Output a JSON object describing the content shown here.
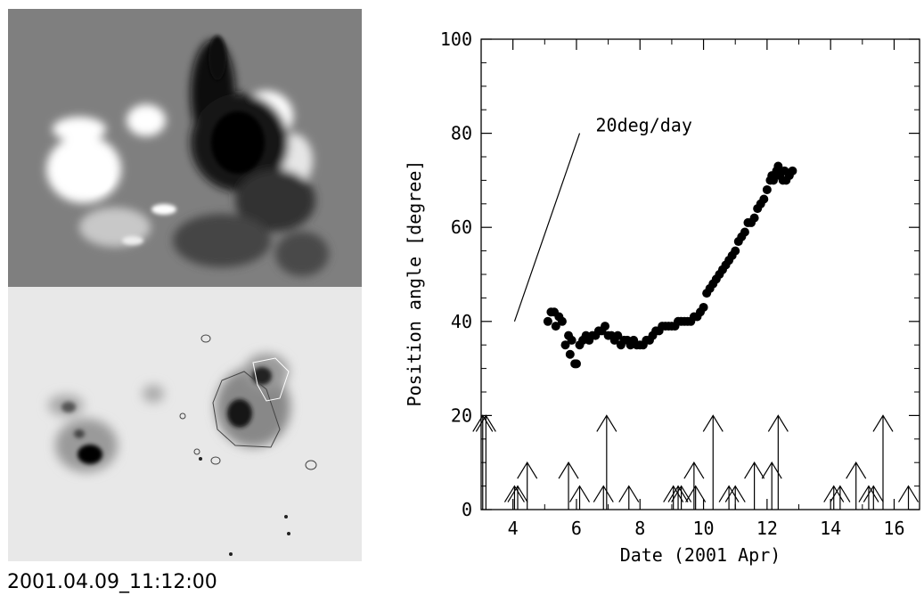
{
  "image_caption": "2001.04.09_11:12:00",
  "panels": {
    "magnetogram": {
      "icon": "magnetogram-image"
    },
    "continuum": {
      "icon": "white-light-sunspot-image"
    }
  },
  "colors": {
    "ink": "#000000",
    "magnetogram_bg": "#7f7f7f",
    "continuum_bg": "#e8e8e8"
  },
  "chart_data": {
    "type": "scatter",
    "xlabel": "Date (2001 Apr)",
    "ylabel": "Position angle [degree]",
    "xlim": [
      3,
      16.8
    ],
    "ylim": [
      0,
      100
    ],
    "xticks": [
      "4",
      "6",
      "8",
      "10",
      "12",
      "14",
      "16"
    ],
    "yticks": [
      "0",
      "20",
      "40",
      "60",
      "80",
      "100"
    ],
    "grid": false,
    "annotation": {
      "text": "20deg/day",
      "line": [
        [
          4.05,
          40
        ],
        [
          6.1,
          80
        ]
      ]
    },
    "points": [
      [
        5.1,
        40
      ],
      [
        5.2,
        42
      ],
      [
        5.3,
        42
      ],
      [
        5.35,
        39
      ],
      [
        5.45,
        41
      ],
      [
        5.55,
        40
      ],
      [
        5.65,
        35
      ],
      [
        5.75,
        37
      ],
      [
        5.8,
        33
      ],
      [
        5.85,
        36
      ],
      [
        5.95,
        31
      ],
      [
        6.0,
        31
      ],
      [
        6.1,
        35
      ],
      [
        6.2,
        36
      ],
      [
        6.3,
        37
      ],
      [
        6.4,
        36
      ],
      [
        6.5,
        37
      ],
      [
        6.6,
        37
      ],
      [
        6.7,
        38
      ],
      [
        6.8,
        38
      ],
      [
        6.9,
        39
      ],
      [
        7.0,
        37
      ],
      [
        7.1,
        37
      ],
      [
        7.2,
        36
      ],
      [
        7.3,
        37
      ],
      [
        7.4,
        35
      ],
      [
        7.5,
        36
      ],
      [
        7.6,
        36
      ],
      [
        7.7,
        35
      ],
      [
        7.8,
        36
      ],
      [
        7.9,
        35
      ],
      [
        8.0,
        35
      ],
      [
        8.1,
        35
      ],
      [
        8.2,
        36
      ],
      [
        8.3,
        36
      ],
      [
        8.4,
        37
      ],
      [
        8.5,
        38
      ],
      [
        8.6,
        38
      ],
      [
        8.7,
        39
      ],
      [
        8.8,
        39
      ],
      [
        8.9,
        39
      ],
      [
        9.0,
        39
      ],
      [
        9.1,
        39
      ],
      [
        9.2,
        40
      ],
      [
        9.3,
        40
      ],
      [
        9.4,
        40
      ],
      [
        9.5,
        40
      ],
      [
        9.6,
        40
      ],
      [
        9.7,
        41
      ],
      [
        9.8,
        41
      ],
      [
        9.9,
        42
      ],
      [
        10.0,
        43
      ],
      [
        10.1,
        46
      ],
      [
        10.2,
        47
      ],
      [
        10.3,
        48
      ],
      [
        10.4,
        49
      ],
      [
        10.5,
        50
      ],
      [
        10.6,
        51
      ],
      [
        10.7,
        52
      ],
      [
        10.8,
        53
      ],
      [
        10.9,
        54
      ],
      [
        11.0,
        55
      ],
      [
        11.1,
        57
      ],
      [
        11.2,
        58
      ],
      [
        11.3,
        59
      ],
      [
        11.4,
        61
      ],
      [
        11.5,
        61
      ],
      [
        11.6,
        62
      ],
      [
        11.7,
        64
      ],
      [
        11.8,
        65
      ],
      [
        11.9,
        66
      ],
      [
        12.0,
        68
      ],
      [
        12.1,
        70
      ],
      [
        12.15,
        71
      ],
      [
        12.2,
        70
      ],
      [
        12.3,
        72
      ],
      [
        12.35,
        73
      ],
      [
        12.4,
        71
      ],
      [
        12.5,
        70
      ],
      [
        12.55,
        72
      ],
      [
        12.6,
        70
      ],
      [
        12.7,
        71
      ],
      [
        12.8,
        72
      ]
    ],
    "flare_arrows": [
      [
        3.05,
        20
      ],
      [
        3.15,
        20
      ],
      [
        4.05,
        5
      ],
      [
        4.15,
        5
      ],
      [
        4.45,
        10
      ],
      [
        5.75,
        10
      ],
      [
        6.1,
        5
      ],
      [
        6.85,
        5
      ],
      [
        6.95,
        20
      ],
      [
        7.65,
        5
      ],
      [
        9.05,
        5
      ],
      [
        9.2,
        5
      ],
      [
        9.3,
        5
      ],
      [
        9.7,
        10
      ],
      [
        9.75,
        5
      ],
      [
        10.3,
        20
      ],
      [
        10.8,
        5
      ],
      [
        11.0,
        5
      ],
      [
        11.6,
        10
      ],
      [
        12.15,
        10
      ],
      [
        12.35,
        20
      ],
      [
        14.1,
        5
      ],
      [
        14.3,
        5
      ],
      [
        14.8,
        10
      ],
      [
        15.2,
        5
      ],
      [
        15.35,
        5
      ],
      [
        15.65,
        20
      ],
      [
        16.45,
        5
      ]
    ]
  }
}
